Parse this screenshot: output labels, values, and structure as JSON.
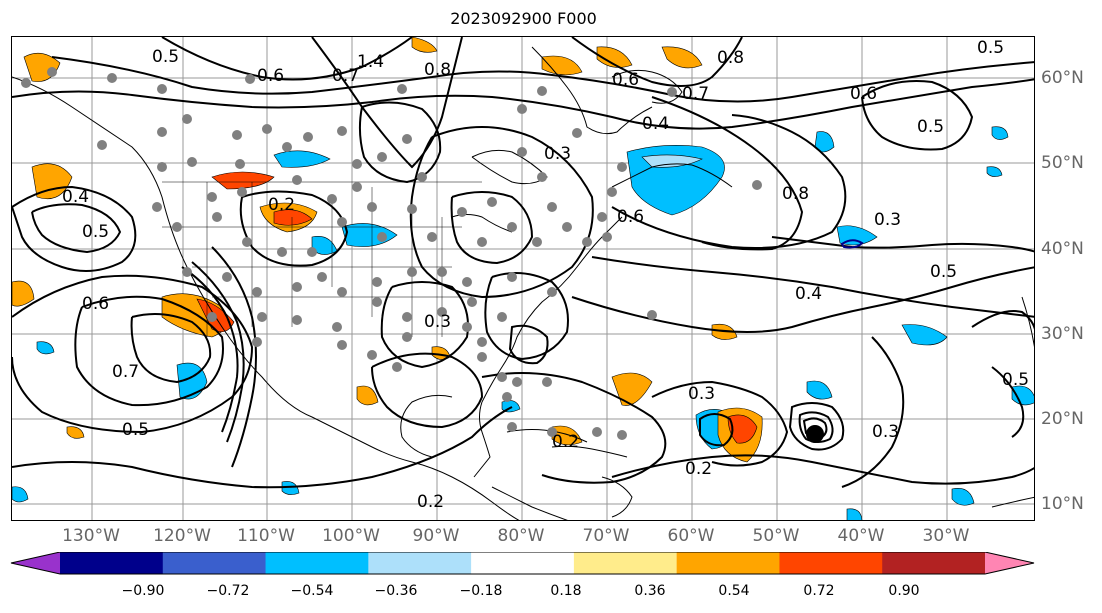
{
  "title": "2023092900 F000",
  "map": {
    "lon_labels": [
      "130°W",
      "120°W",
      "110°W",
      "100°W",
      "90°W",
      "80°W",
      "70°W",
      "60°W",
      "50°W",
      "40°W",
      "30°W"
    ],
    "lat_labels": [
      "60°N",
      "50°N",
      "40°N",
      "30°N",
      "20°N",
      "10°N"
    ],
    "contour_labels": [
      "0.5",
      "0.6",
      "0.7",
      "1.4",
      "0.8",
      "0.6",
      "0.7",
      "0.8",
      "0.5",
      "0.6",
      "0.5",
      "0.4",
      "0.3",
      "0.8",
      "0.6",
      "0.2",
      "0.4",
      "0.3",
      "0.5",
      "0.4",
      "0.5",
      "0.6",
      "0.7",
      "0.5",
      "0.3",
      "0.2",
      "0.2",
      "0.3",
      "0.2",
      "0.3",
      "0.5"
    ],
    "colors": {
      "contour": "#000000",
      "station": "#808080",
      "grid": "#999999",
      "coast": "#000000"
    }
  },
  "colorbar": {
    "tick_labels": [
      "−0.90",
      "−0.72",
      "−0.54",
      "−0.36",
      "−0.18",
      "0.18",
      "0.36",
      "0.54",
      "0.72",
      "0.90"
    ],
    "colors": [
      "#9932CC",
      "#00008B",
      "#3A5FCD",
      "#00BFFF",
      "#ADE0FA",
      "#FFFFFF",
      "#FFEC8B",
      "#FFA500",
      "#FF4500",
      "#B22222",
      "#FF85B3"
    ]
  }
}
